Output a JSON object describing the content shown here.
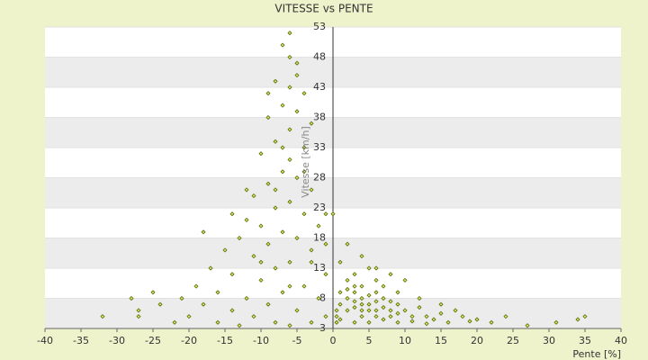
{
  "chart_data": {
    "type": "scatter",
    "title": "VITESSE vs PENTE",
    "x_label": "Pente [%]",
    "y_label": "Vitesse [km/h]",
    "xlim": [
      -40,
      40
    ],
    "xticks": [
      -40,
      -35,
      -30,
      -25,
      -20,
      -15,
      -10,
      -5,
      0,
      5,
      10,
      15,
      20,
      25,
      30,
      35,
      40
    ],
    "ylim": [
      3,
      53
    ],
    "yticks": [
      3,
      8,
      13,
      18,
      23,
      28,
      33,
      38,
      43,
      48,
      53
    ],
    "grid": true,
    "color": "#5a6b00",
    "fill": "#d8e36c",
    "x": [
      -6,
      -7,
      -5,
      -8,
      -6,
      -4,
      -7,
      -5,
      -9,
      -3,
      -6,
      -8,
      -4,
      -10,
      -6,
      -7,
      -5,
      -9,
      -3,
      -11,
      -6,
      -8,
      -4,
      -12,
      -2,
      -7,
      -13,
      -5,
      -9,
      -15,
      -3,
      -11,
      -6,
      -17,
      -8,
      -1,
      -14,
      -10,
      -19,
      -4,
      -16,
      -7,
      -21,
      -12,
      -2,
      -18,
      -9,
      -24,
      -27,
      -14,
      -5,
      -20,
      -11,
      -1,
      -16,
      -8,
      -3,
      -32,
      -27,
      -22,
      -13,
      -6,
      -10,
      -14,
      -7,
      -5,
      -8,
      -3,
      -6,
      -10,
      -1,
      -18,
      -25,
      -28,
      -12,
      -4,
      -9,
      -6,
      0,
      -1,
      1,
      2,
      3,
      4,
      5,
      6,
      7,
      8,
      10,
      1,
      2,
      3,
      4,
      5,
      6,
      7,
      8,
      9,
      2,
      3,
      4,
      5,
      6,
      7,
      1,
      2,
      3,
      4,
      5,
      6,
      8,
      9,
      10,
      11,
      12,
      13,
      14,
      15,
      16,
      17,
      18,
      20,
      22,
      24,
      27,
      31,
      34,
      35,
      0.5,
      0.5,
      0.5,
      1,
      3,
      5,
      7,
      9,
      11,
      13,
      19,
      2,
      3,
      4,
      6,
      9,
      12,
      15,
      4,
      6,
      8
    ],
    "values": [
      52,
      50,
      47,
      44,
      43,
      42,
      40,
      39,
      38,
      37,
      36,
      34,
      33,
      32,
      31,
      29,
      28,
      27,
      26,
      25,
      24,
      23,
      22,
      21,
      20,
      19,
      18,
      18,
      17,
      16,
      16,
      15,
      14,
      13,
      13,
      12,
      12,
      11,
      10,
      10,
      9,
      9,
      8,
      8,
      8,
      7,
      7,
      7,
      6,
      6,
      6,
      5,
      5,
      5,
      4,
      4,
      4,
      5,
      5,
      4,
      3.5,
      3.5,
      20,
      22,
      33,
      45,
      26,
      14,
      10,
      14,
      22,
      19,
      9,
      8,
      26,
      29,
      42,
      48,
      22,
      17,
      14,
      17,
      12,
      15,
      13,
      11,
      10,
      12,
      11,
      9,
      8,
      7.5,
      8,
      7,
      7.5,
      6.5,
      6,
      7,
      6,
      6.5,
      6,
      8.5,
      6,
      8,
      7,
      9.5,
      9,
      7,
      6,
      9,
      7.5,
      5.5,
      6,
      5,
      6.5,
      5,
      4.5,
      5.5,
      4,
      6,
      5,
      4.5,
      4,
      5,
      3.5,
      4,
      4.5,
      5,
      4,
      5,
      6,
      4.5,
      4,
      4,
      4.5,
      4,
      4.2,
      3.8,
      4.2,
      11,
      10,
      10,
      13,
      9,
      8,
      7,
      5,
      5,
      5
    ]
  }
}
